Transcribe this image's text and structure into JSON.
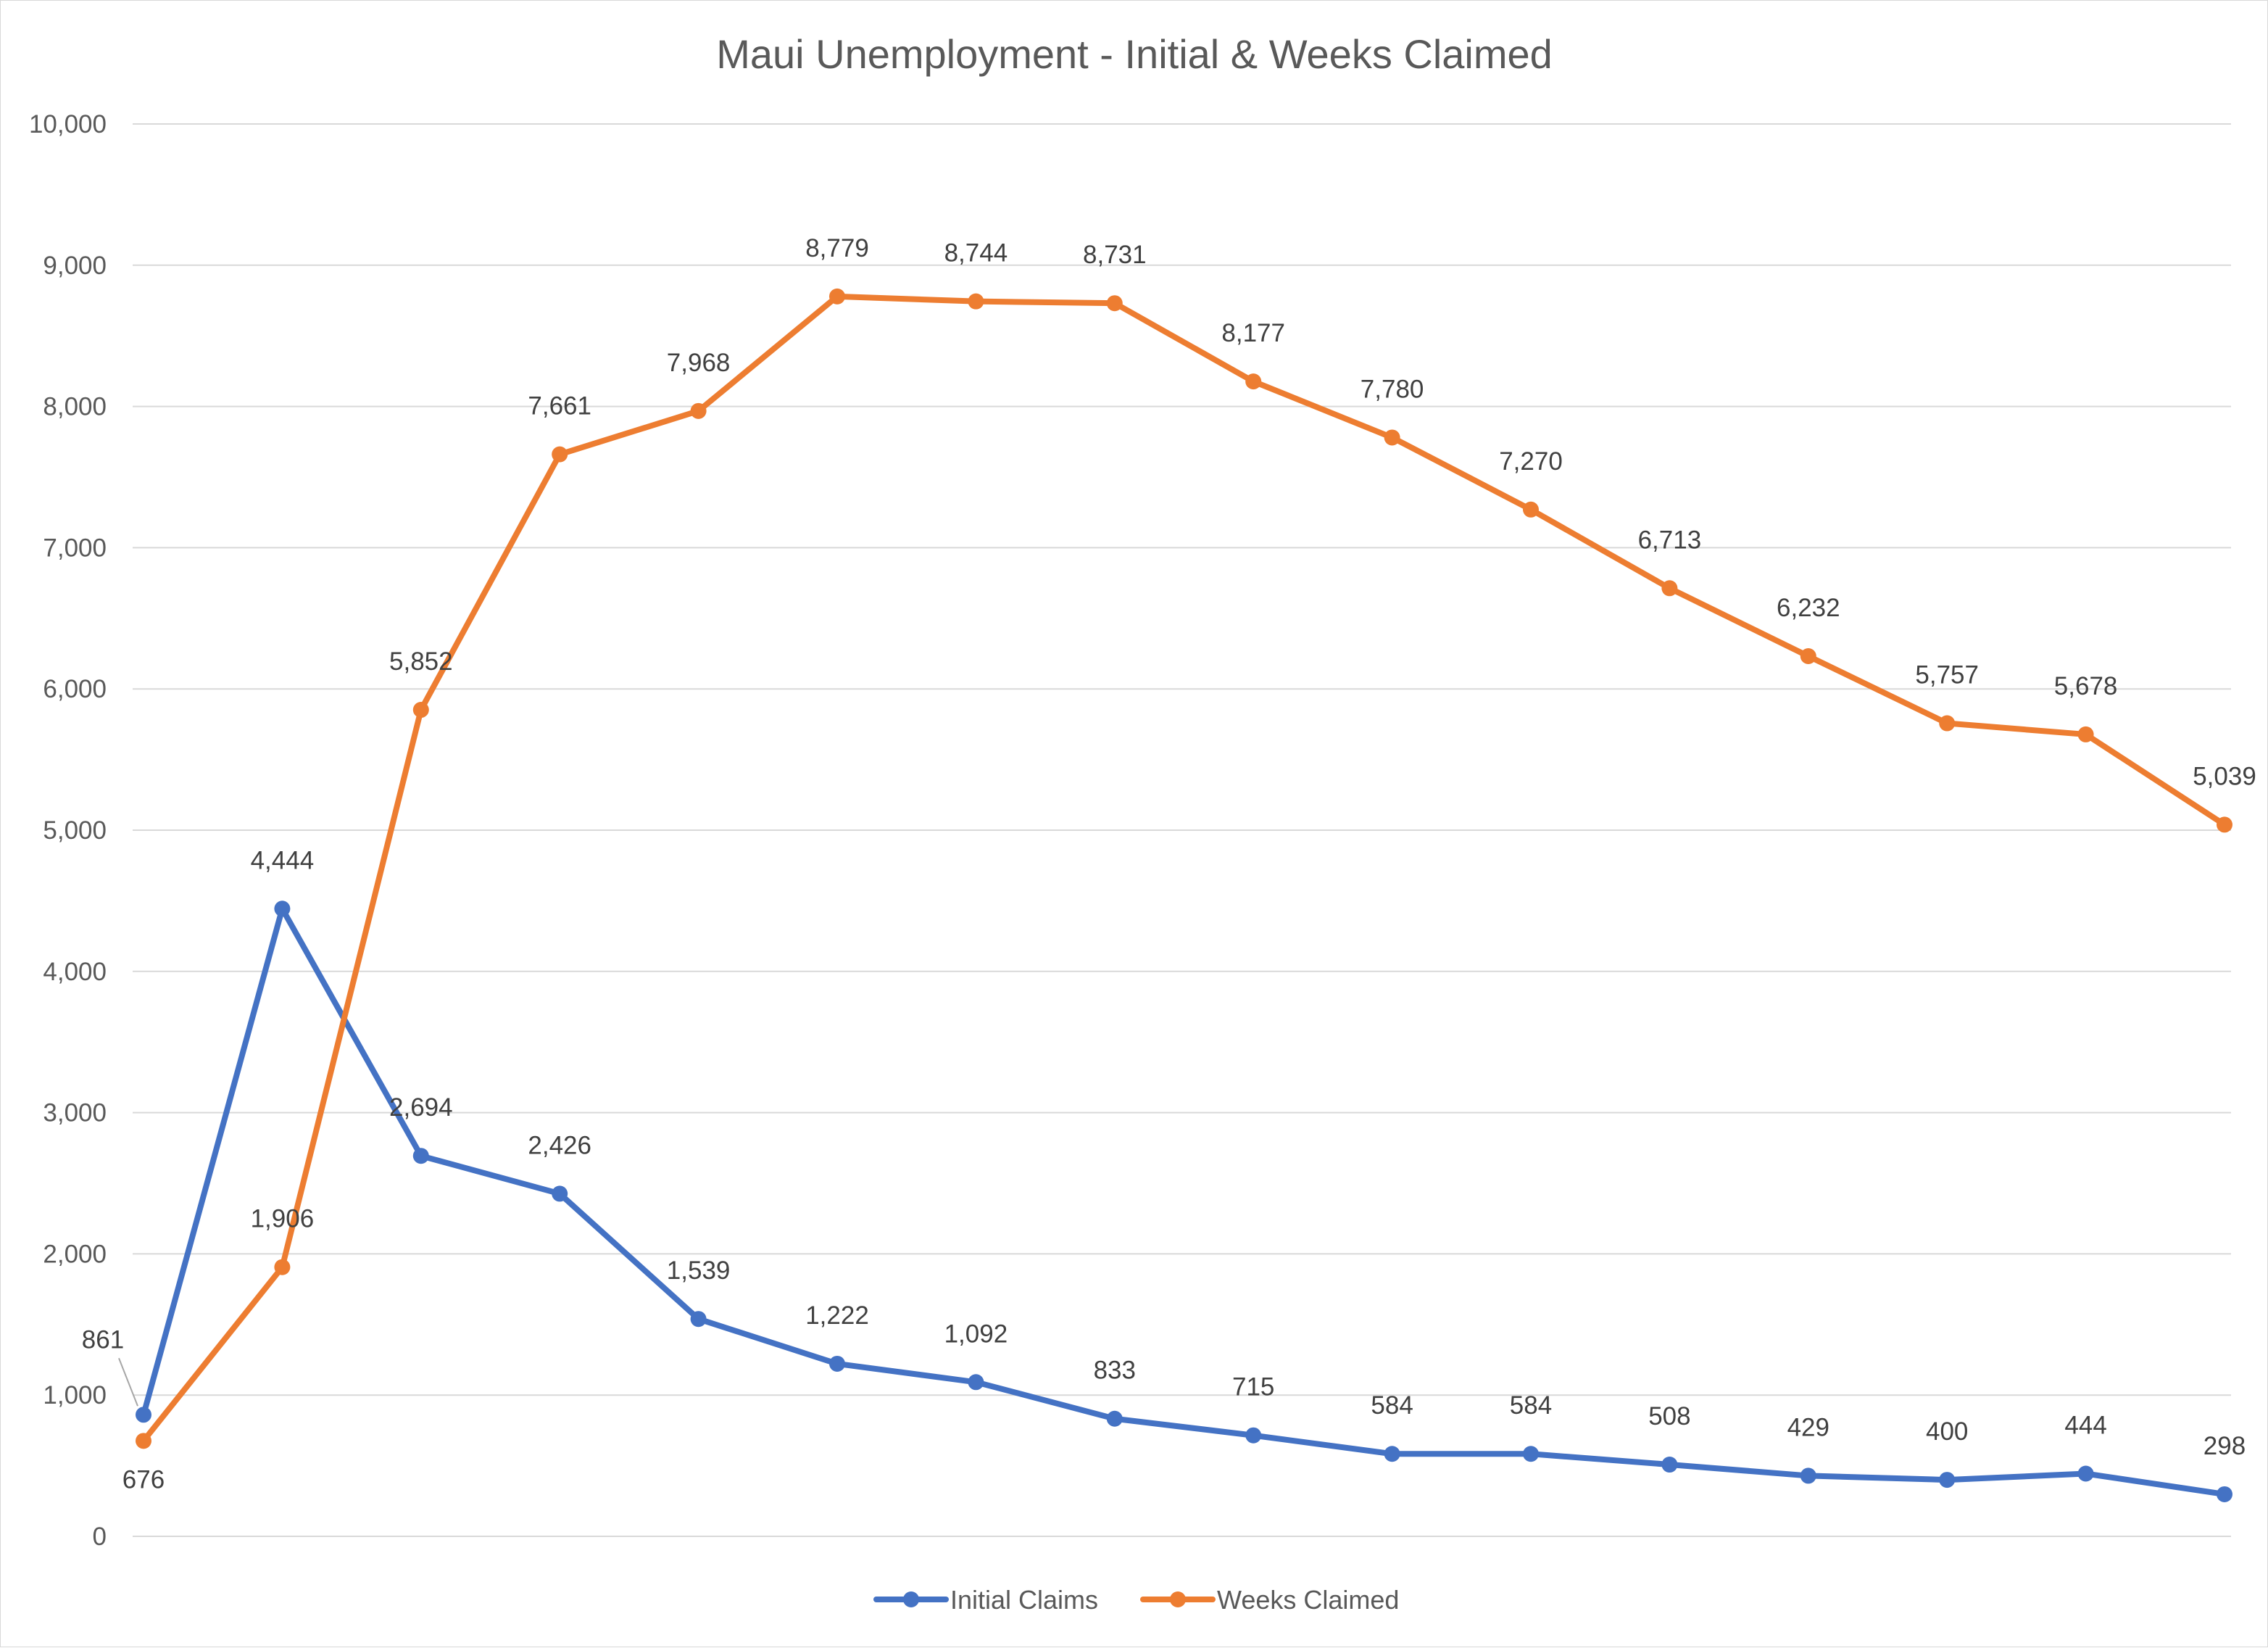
{
  "chart_data": {
    "type": "line",
    "title": "Maui Unemployment - Initial & Weeks Claimed",
    "xlabel": "",
    "ylabel": "",
    "ylim": [
      0,
      10000
    ],
    "y_ticks": [
      "0",
      "1,000",
      "2,000",
      "3,000",
      "4,000",
      "5,000",
      "6,000",
      "7,000",
      "8,000",
      "9,000",
      "10,000"
    ],
    "grid": true,
    "legend_position": "bottom",
    "x": [
      1,
      2,
      3,
      4,
      5,
      6,
      7,
      8,
      9,
      10,
      11,
      12,
      13,
      14,
      15,
      16
    ],
    "series": [
      {
        "name": "Initial Claims",
        "color": "#4472c4",
        "values": [
          861,
          4444,
          2694,
          2426,
          1539,
          1222,
          1092,
          833,
          715,
          584,
          584,
          508,
          429,
          400,
          444,
          298
        ],
        "labels": [
          "861",
          "4,444",
          "2,694",
          "2,426",
          "1,539",
          "1,222",
          "1,092",
          "833",
          "715",
          "584",
          "584",
          "508",
          "429",
          "400",
          "444",
          "298"
        ]
      },
      {
        "name": "Weeks Claimed",
        "color": "#ed7d31",
        "values": [
          676,
          1906,
          5852,
          7661,
          7968,
          8779,
          8744,
          8731,
          8177,
          7780,
          7270,
          6713,
          6232,
          5757,
          5678,
          5039
        ],
        "labels": [
          "676",
          "1,906",
          "5,852",
          "7,661",
          "7,968",
          "8,779",
          "8,744",
          "8,731",
          "8,177",
          "7,780",
          "7,270",
          "6,713",
          "6,232",
          "5,757",
          "5,678",
          "5,039"
        ]
      }
    ]
  }
}
